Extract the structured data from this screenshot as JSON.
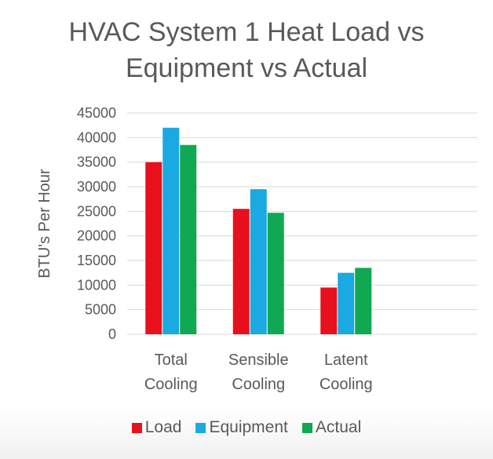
{
  "chart_data": {
    "type": "bar",
    "title_lines": [
      "HVAC System 1 Heat Load vs",
      "Equipment vs Actual"
    ],
    "ylabel": "BTU's Per Hour",
    "ylim": [
      0,
      45000
    ],
    "yticks": [
      0,
      5000,
      10000,
      15000,
      20000,
      25000,
      30000,
      35000,
      40000,
      45000
    ],
    "categories": [
      [
        "Total",
        "Cooling"
      ],
      [
        "Sensible",
        "Cooling"
      ],
      [
        "Latent",
        "Cooling"
      ],
      [
        "",
        ""
      ]
    ],
    "series": [
      {
        "name": "Load",
        "color": "#e8101c",
        "values": [
          35000,
          25500,
          9500,
          null
        ]
      },
      {
        "name": "Equipment",
        "color": "#1aa9e0",
        "values": [
          42000,
          29500,
          12500,
          null
        ]
      },
      {
        "name": "Actual",
        "color": "#10a850",
        "values": [
          38500,
          24700,
          13500,
          null
        ]
      }
    ],
    "grid": true,
    "legend_position": "bottom"
  }
}
